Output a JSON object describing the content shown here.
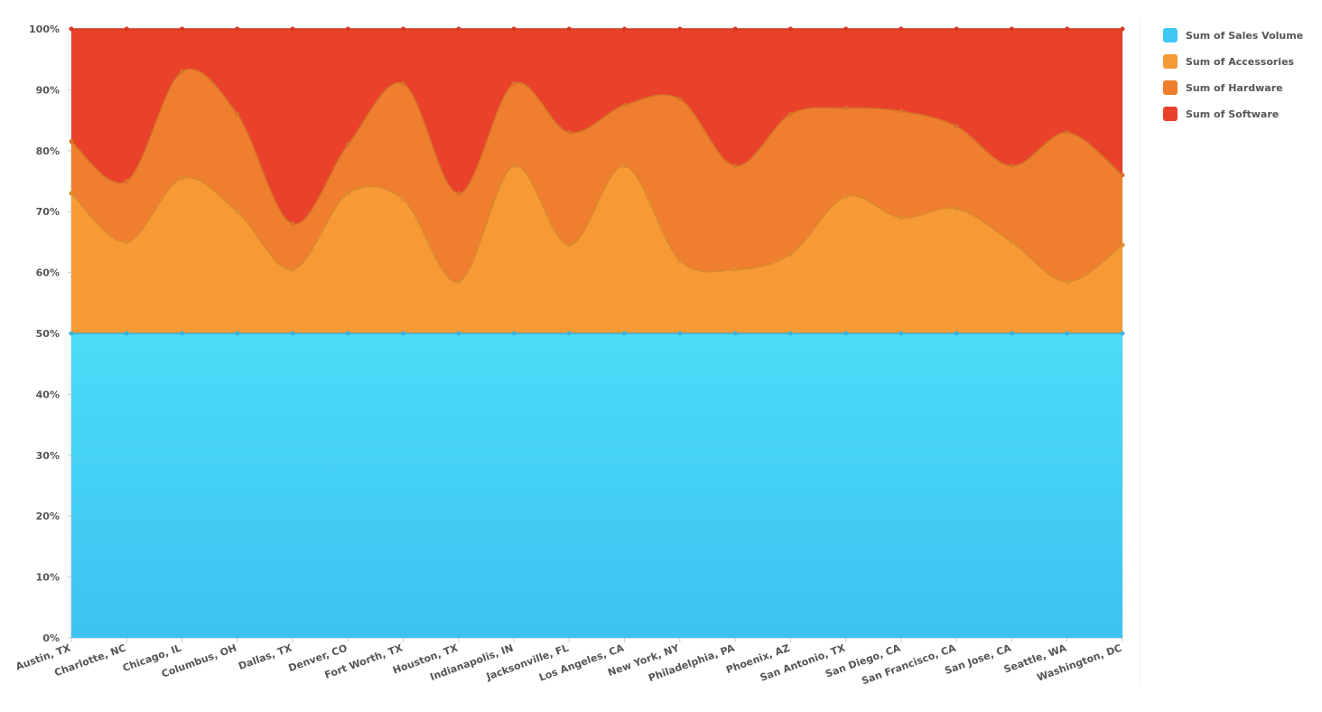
{
  "chart_data": {
    "type": "area",
    "stacked": "percent",
    "categories": [
      "Austin, TX",
      "Charlotte, NC",
      "Chicago, IL",
      "Columbus, OH",
      "Dallas, TX",
      "Denver, CO",
      "Fort Worth, TX",
      "Houston, TX",
      "Indianapolis, IN",
      "Jacksonville, FL",
      "Los Angeles, CA",
      "New York, NY",
      "Philadelphia, PA",
      "Phoenix, AZ",
      "San Antonio, TX",
      "San Diego, CA",
      "San Francisco, CA",
      "San Jose, CA",
      "Seattle, WA",
      "Washington, DC"
    ],
    "series": [
      {
        "name": "Sum of Sales Volume",
        "color": "#40c7f3",
        "values": [
          50,
          50,
          50,
          50,
          50,
          50,
          50,
          50,
          50,
          50,
          50,
          50,
          50,
          50,
          50,
          50,
          50,
          50,
          50,
          50
        ]
      },
      {
        "name": "Sum of Accessories",
        "color": "#f59a35",
        "values": [
          23,
          15,
          25.5,
          20,
          10.5,
          23,
          22,
          8.5,
          27.5,
          14.5,
          27.5,
          12,
          10.5,
          13,
          22.5,
          19,
          20.5,
          15,
          8.5,
          14.5
        ]
      },
      {
        "name": "Sum of Hardware",
        "color": "#ef7f2e",
        "values": [
          8.5,
          10,
          17.5,
          16,
          7.5,
          8,
          19,
          14.5,
          13.5,
          18.5,
          10,
          26.5,
          17,
          23,
          14.5,
          17.5,
          13.5,
          12.5,
          24.5,
          11.5
        ]
      },
      {
        "name": "Sum of Software",
        "color": "#e9412a",
        "values": [
          18.5,
          25,
          7,
          14,
          32,
          19,
          9,
          27,
          9,
          17,
          12.5,
          11.5,
          22.5,
          14,
          13,
          13.5,
          16,
          22.5,
          17,
          24
        ]
      }
    ],
    "ylim": [
      0,
      100
    ],
    "yticks": [
      {
        "value": 0,
        "label": "0%"
      },
      {
        "value": 10,
        "label": "10%"
      },
      {
        "value": 20,
        "label": "20%"
      },
      {
        "value": 30,
        "label": "30%"
      },
      {
        "value": 40,
        "label": "40%"
      },
      {
        "value": 50,
        "label": "50%"
      },
      {
        "value": 60,
        "label": "60%"
      },
      {
        "value": 70,
        "label": "70%"
      },
      {
        "value": 80,
        "label": "80%"
      },
      {
        "value": 90,
        "label": "90%"
      },
      {
        "value": 100,
        "label": "100%"
      }
    ],
    "grid": false,
    "legend": "right"
  }
}
